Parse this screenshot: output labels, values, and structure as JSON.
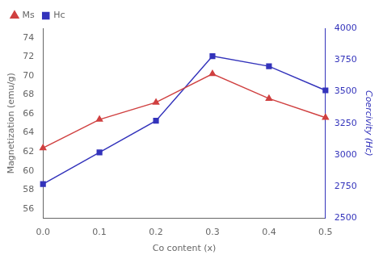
{
  "chart_data": {
    "type": "line",
    "x": [
      0.0,
      0.1,
      0.2,
      0.3,
      0.4,
      0.5
    ],
    "xlabel": "Co content (x)",
    "ylabel": "Magnetization (emu/g)",
    "y2label": "Coercivity (Hc)",
    "series": [
      {
        "name": "Ms",
        "color": "#d04040",
        "values": [
          62.4,
          65.4,
          67.2,
          70.2,
          67.6,
          65.6
        ],
        "marker": "triangle"
      },
      {
        "name": "Hc",
        "color": "#3333bb",
        "values": [
          2770,
          3020,
          3270,
          3780,
          3700,
          3510
        ],
        "marker": "square",
        "axis": "y2"
      }
    ],
    "xlim": [
      0,
      0.5
    ],
    "xticks": [
      {
        "value": 0,
        "label": "0.0"
      },
      0.1,
      0.2,
      0.3,
      0.4,
      0.5
    ],
    "ylim": [
      55,
      75
    ],
    "yticks": [
      56,
      58,
      60,
      62,
      64,
      66,
      68,
      70,
      72,
      74
    ],
    "y2lim": [
      2500,
      4000
    ],
    "y2ticks": [
      2500,
      2750,
      3000,
      3250,
      3500,
      3750,
      4000
    ],
    "grid": false,
    "legend": "upper left"
  }
}
